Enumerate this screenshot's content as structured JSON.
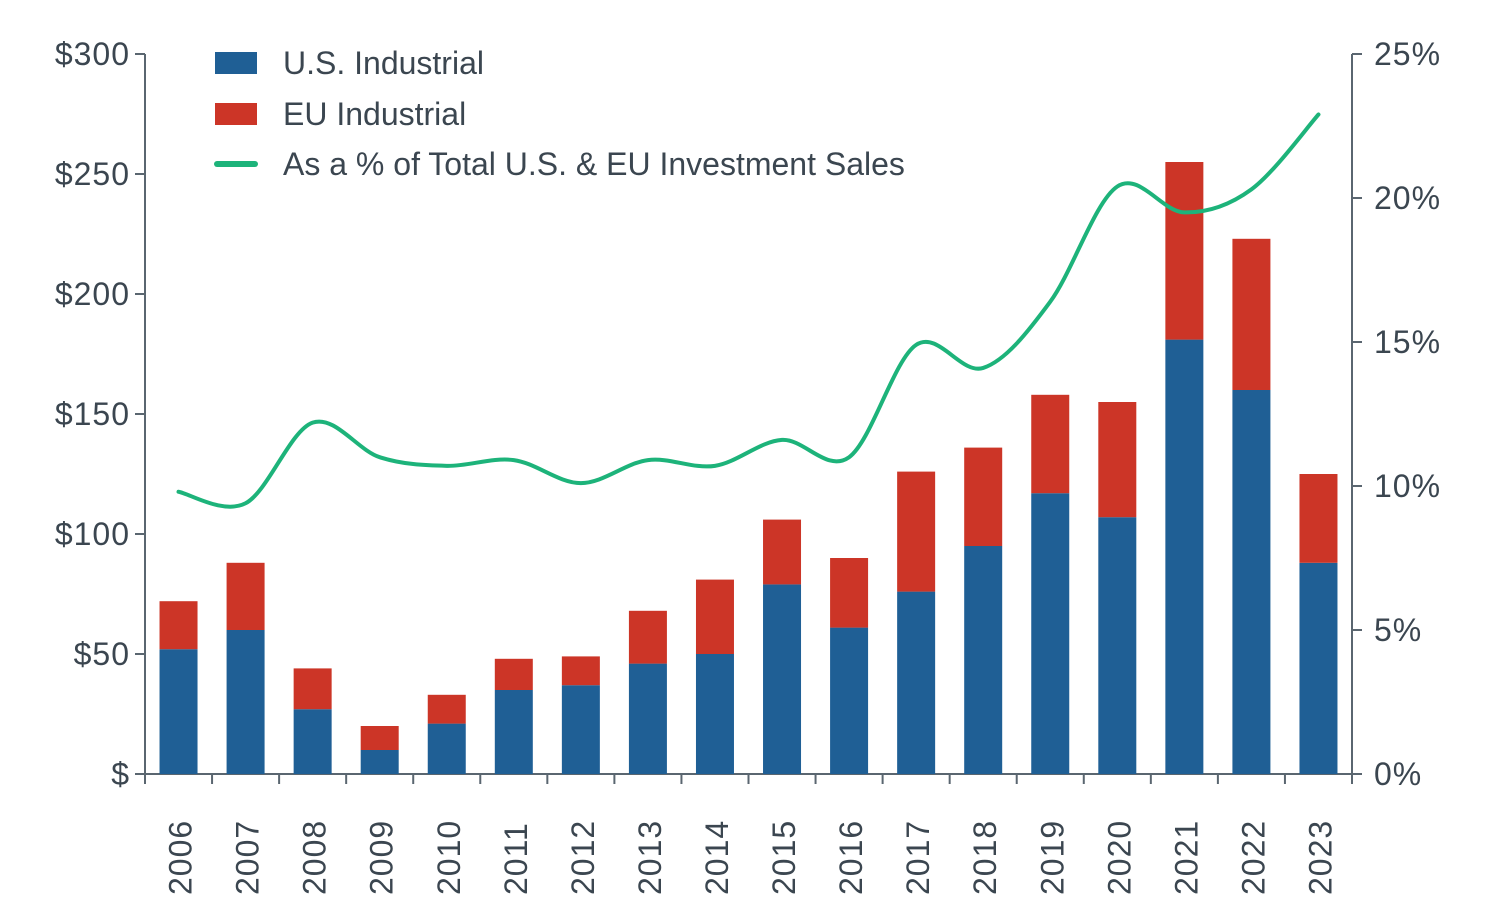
{
  "chart_data": {
    "type": "bar",
    "stacked": true,
    "categories": [
      "2006",
      "2007",
      "2008",
      "2009",
      "2010",
      "2011",
      "2012",
      "2013",
      "2014",
      "2015",
      "2016",
      "2017",
      "2018",
      "2019",
      "2020",
      "2021",
      "2022",
      "2023"
    ],
    "series": [
      {
        "name": "U.S. Industrial",
        "color": "#1f5f95",
        "axis": "left",
        "values": [
          52,
          60,
          27,
          10,
          21,
          35,
          37,
          46,
          50,
          79,
          61,
          76,
          95,
          117,
          107,
          181,
          160,
          88
        ]
      },
      {
        "name": "EU Industrial",
        "color": "#cc3527",
        "axis": "left",
        "values": [
          20,
          28,
          17,
          10,
          12,
          13,
          12,
          22,
          31,
          27,
          29,
          50,
          41,
          41,
          48,
          74,
          63,
          37
        ]
      },
      {
        "name": "As a % of Total U.S. & EU Investment Sales",
        "type": "line",
        "color": "#1db37a",
        "axis": "right",
        "values": [
          9.8,
          9.4,
          12.2,
          11.0,
          10.7,
          10.9,
          10.1,
          10.9,
          10.7,
          11.6,
          11.0,
          14.9,
          14.1,
          16.4,
          20.4,
          19.5,
          20.3,
          22.9
        ]
      }
    ],
    "y_left": {
      "ticks": [
        "$",
        "$50",
        "$100",
        "$150",
        "$200",
        "$250",
        "$300"
      ],
      "tick_values": [
        0,
        50,
        100,
        150,
        200,
        250,
        300
      ],
      "range": [
        0,
        300
      ]
    },
    "y_right": {
      "ticks": [
        "0%",
        "5%",
        "10%",
        "15%",
        "20%",
        "25%"
      ],
      "tick_values": [
        0,
        5,
        10,
        15,
        20,
        25
      ],
      "range": [
        0,
        25
      ]
    },
    "legend_position": "top-left",
    "grid": false,
    "title": "",
    "xlabel": "",
    "ylabel": ""
  }
}
